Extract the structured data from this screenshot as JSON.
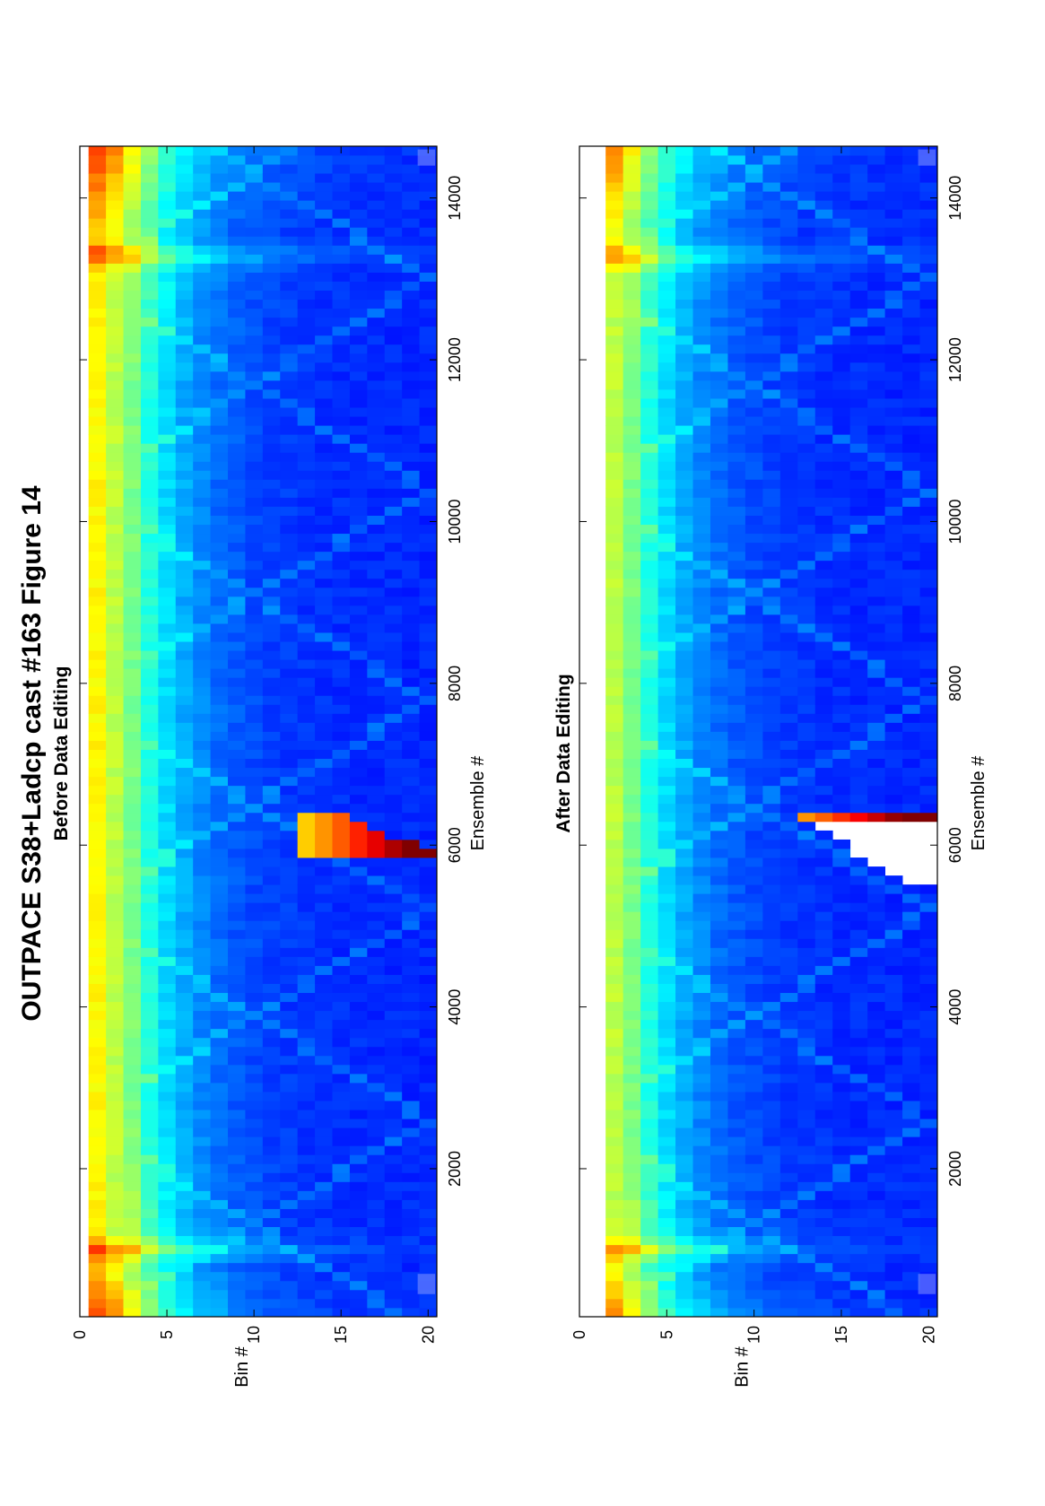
{
  "figure": {
    "title": "OUTPACE S38+Ladcp cast #163  Figure 14"
  },
  "chart_data": [
    {
      "type": "heatmap",
      "title": "Before Data Editing",
      "xlabel": "Ensemble #",
      "ylabel": "Bin #",
      "xlim": [
        170,
        14640
      ],
      "ylim": [
        0,
        20.5
      ],
      "x_ticks": [
        2000,
        4000,
        6000,
        8000,
        10000,
        12000,
        14000
      ],
      "y_ticks": [
        0,
        5,
        10,
        15,
        20
      ],
      "colormap": "jet",
      "orientation": "figure rotated 90 degrees counter-clockwise",
      "features": {
        "near_surface_strong_bins": [
          1,
          2
        ],
        "high_amplitude_ensembles": [
          1000,
          13300
        ],
        "spike_ensemble_range": [
          5850,
          6450
        ],
        "spike_bin_range": [
          13,
          20
        ]
      }
    },
    {
      "type": "heatmap",
      "title": "After Data Editing",
      "xlabel": "Ensemble #",
      "ylabel": "Bin #",
      "xlim": [
        170,
        14640
      ],
      "ylim": [
        0,
        20.5
      ],
      "x_ticks": [
        2000,
        4000,
        6000,
        8000,
        10000,
        12000,
        14000
      ],
      "y_ticks": [
        0,
        5,
        10,
        15,
        20
      ],
      "colormap": "jet",
      "orientation": "figure rotated 90 degrees counter-clockwise",
      "features": {
        "bin1_removed": true,
        "removed_region_ensemble_range": [
          5500,
          6200
        ],
        "removed_region_bin_range": [
          14,
          20
        ]
      }
    }
  ]
}
